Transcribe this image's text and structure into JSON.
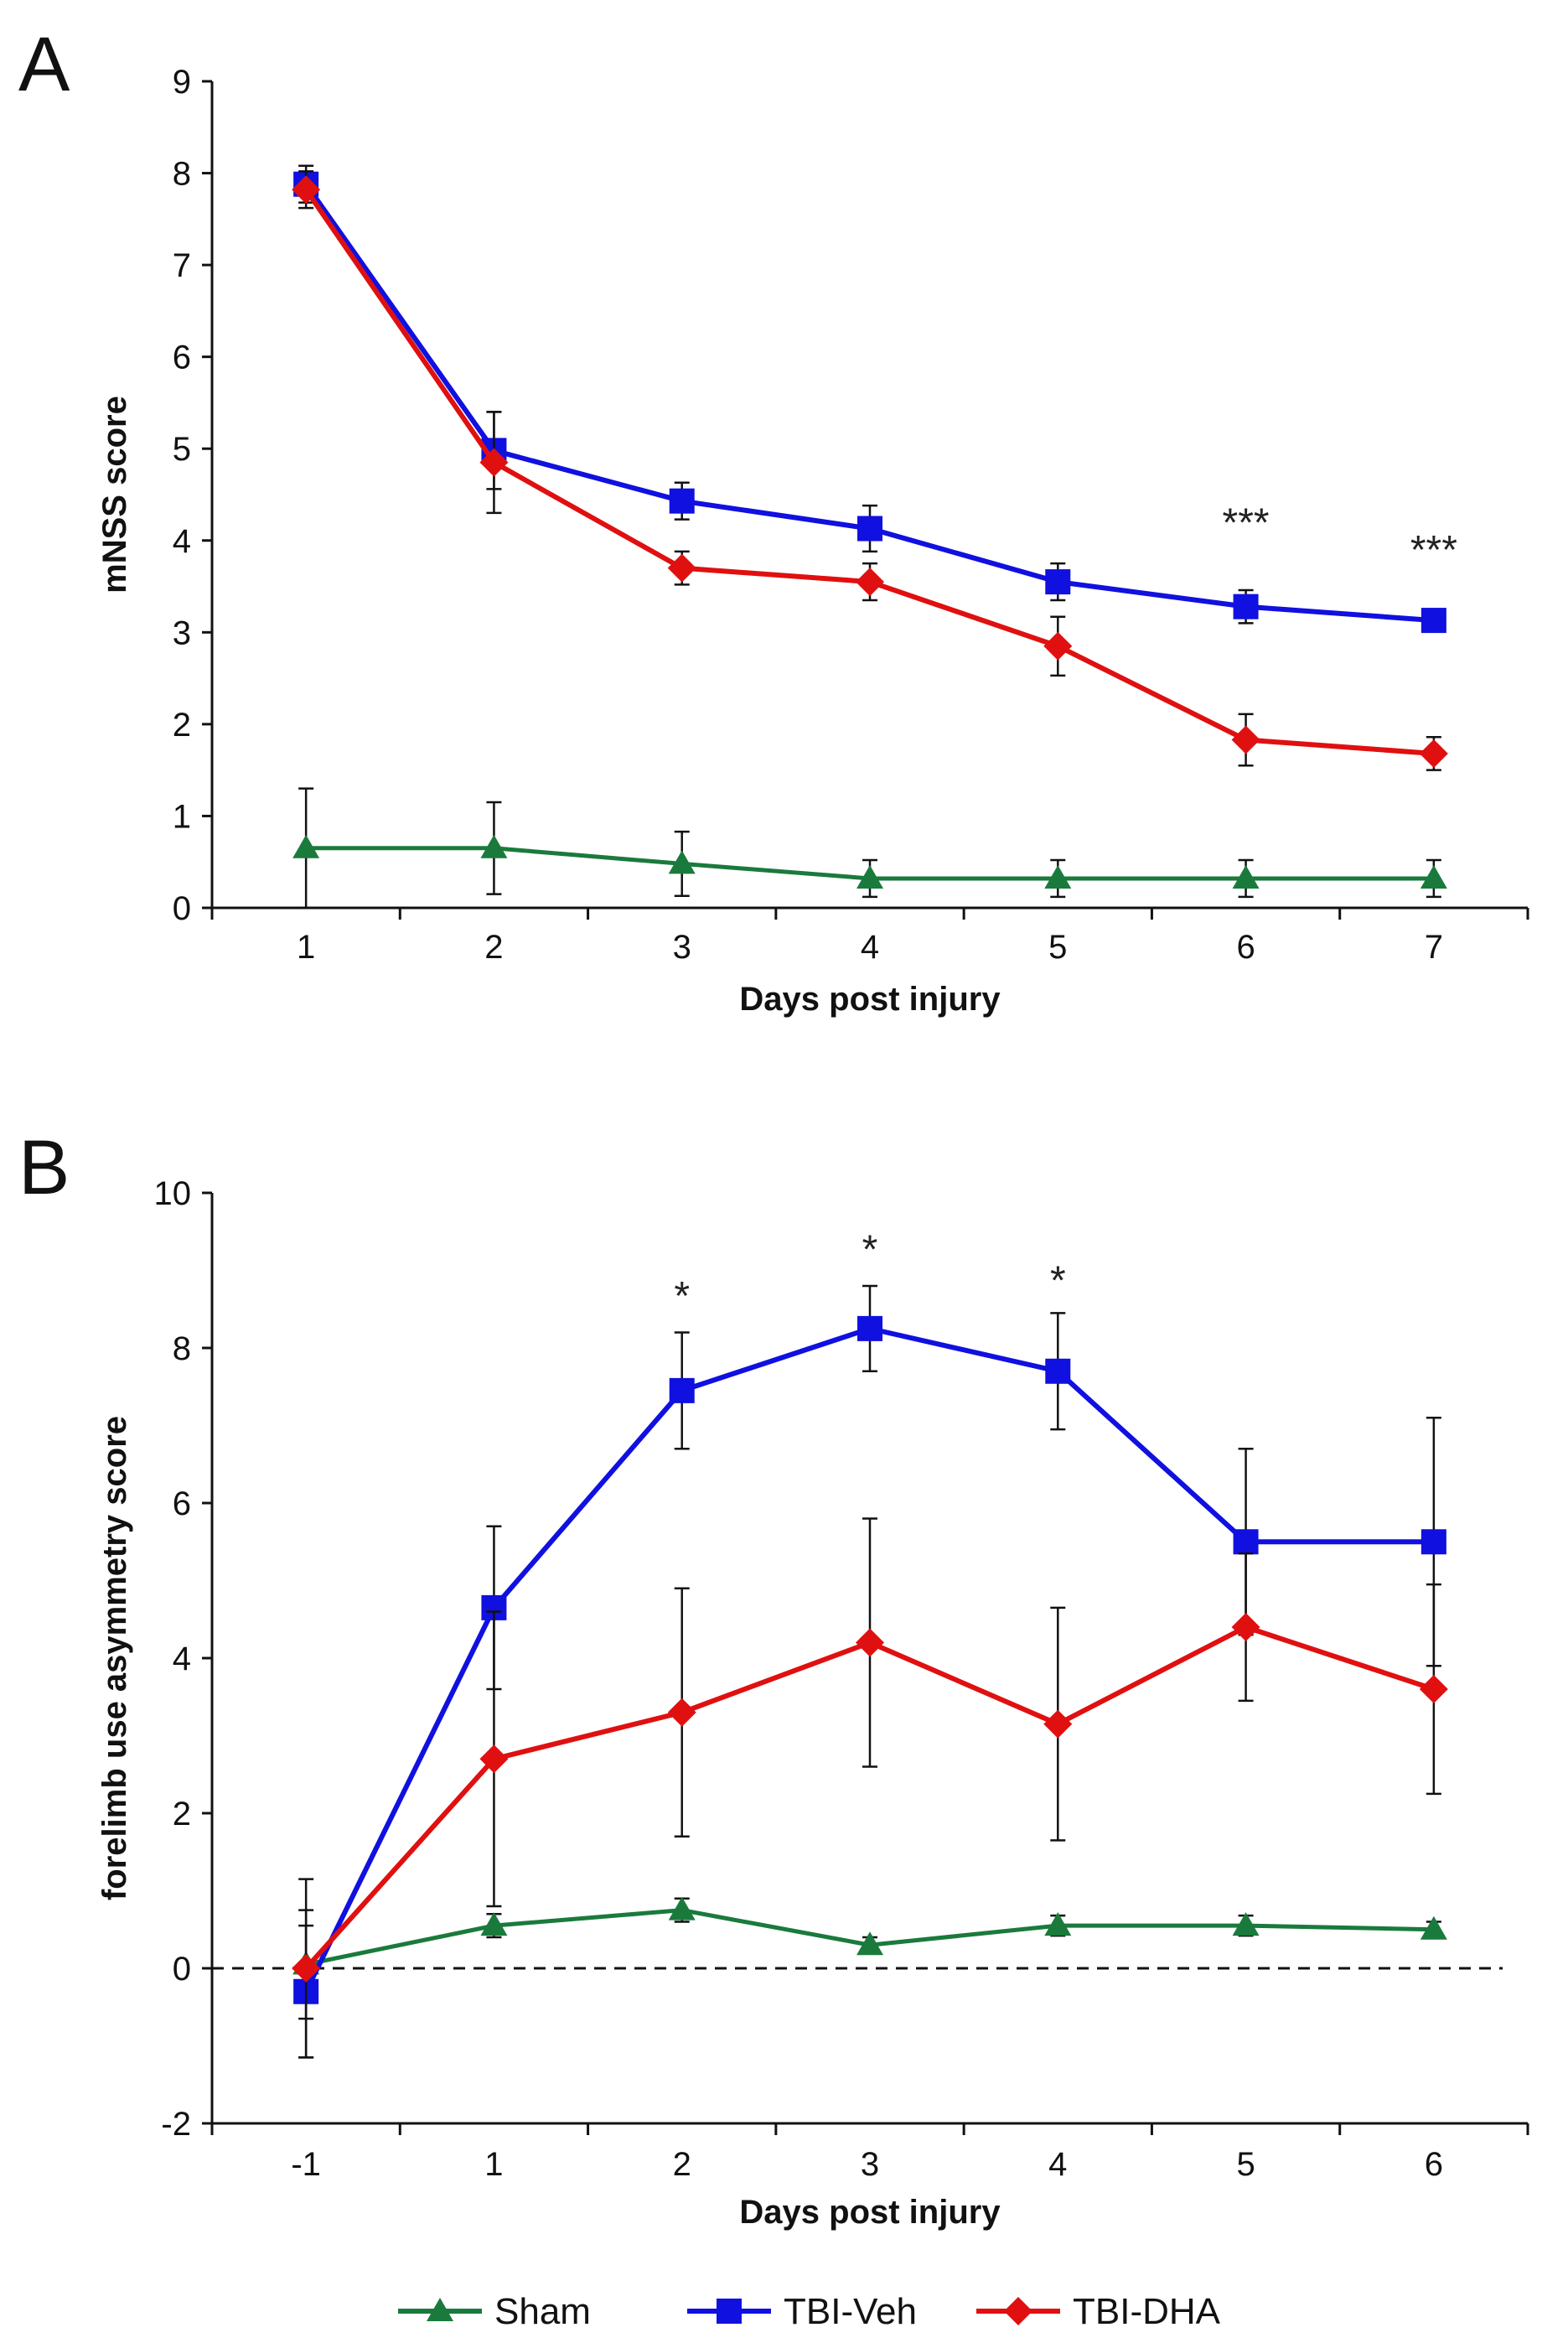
{
  "chart_data": [
    {
      "panel": "A",
      "type": "line",
      "title": "",
      "xlabel": "Days post injury",
      "ylabel": "mNSS score",
      "x": [
        1,
        2,
        3,
        4,
        5,
        6,
        7
      ],
      "xlim": [
        0.5,
        7.5
      ],
      "ylim": [
        0,
        9
      ],
      "yticks": [
        0,
        1,
        2,
        3,
        4,
        5,
        6,
        7,
        8,
        9
      ],
      "grid": false,
      "series": [
        {
          "name": "Sham",
          "color": "#1a7a3c",
          "marker": "triangle",
          "values": [
            0.65,
            0.65,
            0.48,
            0.32,
            0.32,
            0.32,
            0.32
          ],
          "errors": [
            0.65,
            0.5,
            0.35,
            0.2,
            0.2,
            0.2,
            0.2
          ]
        },
        {
          "name": "TBI-Veh",
          "color": "#1010e0",
          "marker": "square",
          "values": [
            7.88,
            4.98,
            4.43,
            4.13,
            3.55,
            3.28,
            3.13
          ],
          "errors": [
            0.2,
            0.42,
            0.2,
            0.25,
            0.2,
            0.18,
            0.08
          ]
        },
        {
          "name": "TBI-DHA",
          "color": "#e01010",
          "marker": "diamond",
          "values": [
            7.82,
            4.85,
            3.7,
            3.55,
            2.85,
            1.83,
            1.68
          ],
          "errors": [
            0.2,
            0.55,
            0.18,
            0.2,
            0.32,
            0.28,
            0.18
          ]
        }
      ],
      "annotations": [
        {
          "x": 6,
          "y": 4.05,
          "text": "***"
        },
        {
          "x": 7,
          "y": 3.75,
          "text": "***"
        }
      ]
    },
    {
      "panel": "B",
      "type": "line",
      "title": "",
      "xlabel": "Days  post injury",
      "ylabel": "forelimb  use asymmetry  score",
      "x": [
        -1,
        1,
        2,
        3,
        4,
        5,
        6
      ],
      "xlabels": [
        "-1",
        "1",
        "2",
        "3",
        "4",
        "5",
        "6"
      ],
      "xlim": [
        -1.5,
        6.5
      ],
      "ylim": [
        -2,
        10
      ],
      "yticks": [
        -2,
        0,
        2,
        4,
        6,
        8,
        10
      ],
      "reference_line_y": 0,
      "grid": false,
      "series": [
        {
          "name": "Sham",
          "color": "#1a7a3c",
          "marker": "triangle",
          "values": [
            0.05,
            0.55,
            0.75,
            0.3,
            0.55,
            0.55,
            0.5
          ],
          "errors": [
            0.7,
            0.15,
            0.15,
            0.1,
            0.13,
            0.13,
            0.1
          ]
        },
        {
          "name": "TBI-Veh",
          "color": "#1010e0",
          "marker": "square",
          "values": [
            -0.3,
            4.65,
            7.45,
            8.25,
            7.7,
            5.5,
            5.5
          ],
          "errors": [
            0.85,
            1.05,
            0.75,
            0.55,
            0.75,
            1.2,
            1.6
          ]
        },
        {
          "name": "TBI-DHA",
          "color": "#e01010",
          "marker": "diamond",
          "values": [
            0.0,
            2.7,
            3.3,
            4.2,
            3.15,
            4.4,
            3.6
          ],
          "errors": [
            1.15,
            1.9,
            1.6,
            1.6,
            1.5,
            0.95,
            1.35
          ]
        }
      ],
      "annotations": [
        {
          "x": 2,
          "y": 8.5,
          "text": "*"
        },
        {
          "x": 3,
          "y": 9.1,
          "text": "*"
        },
        {
          "x": 4,
          "y": 8.7,
          "text": "*"
        }
      ]
    }
  ],
  "legend": {
    "position": "bottom-center",
    "entries": [
      {
        "label": "Sham",
        "color": "#1a7a3c",
        "marker": "triangle"
      },
      {
        "label": "TBI-Veh",
        "color": "#1010e0",
        "marker": "square"
      },
      {
        "label": "TBI-DHA",
        "color": "#e01010",
        "marker": "diamond"
      }
    ]
  }
}
